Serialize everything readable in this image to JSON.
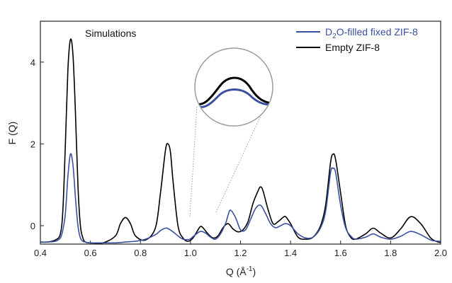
{
  "chart_data": {
    "type": "line",
    "annotation": "Simulations",
    "xlabel": {
      "main": "Q (Å",
      "sup": "-1",
      "close": ")"
    },
    "ylabel": "F (Q)",
    "xlim": [
      0.4,
      2.0
    ],
    "ylim": [
      -0.45,
      5.0
    ],
    "xticks": [
      0.4,
      0.6,
      0.8,
      1.0,
      1.2,
      1.4,
      1.6,
      1.8,
      2.0
    ],
    "xtick_labels": [
      "0.4",
      "0.6",
      "0.8",
      "1.0",
      "1.2",
      "1.4",
      "1.6",
      "1.8",
      "2.0"
    ],
    "yticks": [
      0,
      2,
      4
    ],
    "ytick_labels": [
      "0",
      "2",
      "4"
    ],
    "grid": false,
    "legend_position": "top-right",
    "inset": {
      "type": "zoom-circle",
      "x_range": [
        1.0,
        1.12
      ]
    },
    "series": [
      {
        "name": "D2O-filled fixed ZIF-8",
        "legend": {
          "pre": "D",
          "sub": "2",
          "post": "O-filled fixed ZIF-8"
        },
        "color": "#3a4fa0",
        "x": [
          0.4,
          0.43,
          0.46,
          0.48,
          0.49,
          0.5,
          0.51,
          0.52,
          0.53,
          0.54,
          0.55,
          0.56,
          0.57,
          0.58,
          0.6,
          0.65,
          0.7,
          0.74,
          0.78,
          0.82,
          0.86,
          0.88,
          0.9,
          0.91,
          0.93,
          0.95,
          0.97,
          0.99,
          1.0,
          1.02,
          1.04,
          1.06,
          1.08,
          1.1,
          1.12,
          1.14,
          1.15,
          1.16,
          1.18,
          1.2,
          1.22,
          1.24,
          1.26,
          1.28,
          1.3,
          1.32,
          1.34,
          1.36,
          1.38,
          1.4,
          1.43,
          1.46,
          1.49,
          1.52,
          1.54,
          1.56,
          1.57,
          1.58,
          1.6,
          1.62,
          1.64,
          1.66,
          1.7,
          1.73,
          1.76,
          1.8,
          1.84,
          1.88,
          1.92,
          1.96,
          1.99,
          2.0
        ],
        "y": [
          -0.4,
          -0.4,
          -0.38,
          -0.3,
          -0.1,
          0.3,
          1.2,
          1.75,
          1.5,
          0.7,
          0.0,
          -0.3,
          -0.38,
          -0.4,
          -0.42,
          -0.42,
          -0.42,
          -0.4,
          -0.38,
          -0.33,
          -0.22,
          -0.12,
          -0.06,
          -0.07,
          -0.15,
          -0.25,
          -0.33,
          -0.34,
          -0.32,
          -0.22,
          -0.14,
          -0.18,
          -0.28,
          -0.33,
          -0.2,
          0.05,
          0.25,
          0.38,
          0.2,
          -0.1,
          -0.1,
          0.15,
          0.42,
          0.5,
          0.3,
          0.05,
          -0.05,
          0.0,
          0.05,
          0.0,
          -0.2,
          -0.3,
          -0.28,
          -0.05,
          0.35,
          1.3,
          1.4,
          1.3,
          0.5,
          -0.05,
          -0.25,
          -0.33,
          -0.28,
          -0.2,
          -0.28,
          -0.33,
          -0.26,
          -0.14,
          -0.22,
          -0.35,
          -0.38,
          -0.38
        ]
      },
      {
        "name": "Empty ZIF-8",
        "color": "#000000",
        "x": [
          0.4,
          0.43,
          0.46,
          0.48,
          0.49,
          0.5,
          0.51,
          0.52,
          0.53,
          0.54,
          0.55,
          0.56,
          0.57,
          0.58,
          0.6,
          0.65,
          0.7,
          0.72,
          0.74,
          0.76,
          0.78,
          0.82,
          0.86,
          0.88,
          0.9,
          0.91,
          0.92,
          0.93,
          0.95,
          0.97,
          0.99,
          1.01,
          1.03,
          1.04,
          1.05,
          1.07,
          1.09,
          1.11,
          1.13,
          1.15,
          1.17,
          1.19,
          1.21,
          1.23,
          1.25,
          1.27,
          1.28,
          1.29,
          1.31,
          1.33,
          1.35,
          1.37,
          1.38,
          1.4,
          1.43,
          1.46,
          1.49,
          1.52,
          1.54,
          1.56,
          1.57,
          1.58,
          1.6,
          1.62,
          1.64,
          1.66,
          1.7,
          1.73,
          1.76,
          1.8,
          1.84,
          1.88,
          1.92,
          1.96,
          1.99,
          2.0
        ],
        "y": [
          -0.4,
          -0.4,
          -0.35,
          -0.2,
          0.4,
          2.0,
          3.8,
          4.55,
          4.2,
          2.8,
          1.0,
          0.0,
          -0.3,
          -0.4,
          -0.42,
          -0.42,
          -0.25,
          0.05,
          0.2,
          0.05,
          -0.25,
          -0.35,
          -0.05,
          0.8,
          1.85,
          2.0,
          1.8,
          1.1,
          0.0,
          -0.3,
          -0.38,
          -0.3,
          -0.1,
          -0.02,
          -0.05,
          -0.2,
          -0.3,
          -0.25,
          -0.05,
          0.05,
          -0.08,
          -0.15,
          -0.1,
          0.1,
          0.55,
          0.85,
          0.95,
          0.85,
          0.4,
          0.05,
          0.1,
          0.2,
          0.22,
          0.05,
          -0.28,
          -0.33,
          -0.28,
          0.0,
          0.5,
          1.55,
          1.75,
          1.62,
          0.8,
          0.0,
          -0.28,
          -0.33,
          -0.2,
          -0.06,
          -0.18,
          -0.3,
          -0.08,
          0.22,
          0.05,
          -0.3,
          -0.4,
          -0.4
        ]
      }
    ]
  }
}
